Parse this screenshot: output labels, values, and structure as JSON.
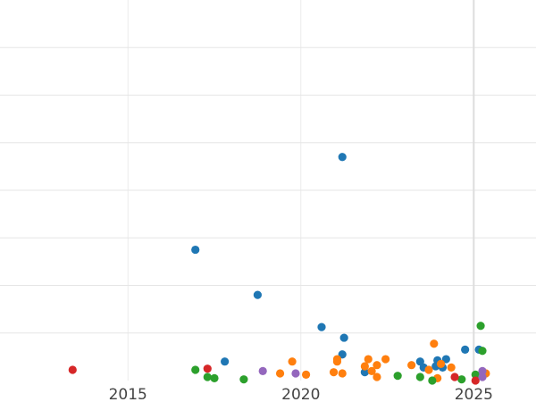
{
  "chart_data": {
    "type": "scatter",
    "title": "",
    "xlabel": "",
    "ylabel": "",
    "xlim": [
      2011.3,
      2026.8
    ],
    "ylim": [
      0,
      16
    ],
    "grid": true,
    "legend": "none",
    "x_ticks": [
      {
        "value": 2015,
        "label": "2015"
      },
      {
        "value": 2020,
        "label": "2020"
      },
      {
        "value": 2025,
        "label": "2025"
      }
    ],
    "y_gridlines": [
      2,
      4,
      6,
      8,
      10,
      12,
      14
    ],
    "highlight_x": 2025,
    "series": [
      {
        "color": "#1f77b4",
        "points": [
          {
            "x": 2021.2,
            "y": 9.4
          },
          {
            "x": 2016.95,
            "y": 5.5
          },
          {
            "x": 2018.75,
            "y": 3.6
          },
          {
            "x": 2020.6,
            "y": 2.25
          },
          {
            "x": 2021.25,
            "y": 1.8
          },
          {
            "x": 2021.2,
            "y": 1.1
          },
          {
            "x": 2017.8,
            "y": 0.8
          },
          {
            "x": 2021.85,
            "y": 0.35
          },
          {
            "x": 2023.45,
            "y": 0.8
          },
          {
            "x": 2023.55,
            "y": 0.55
          },
          {
            "x": 2023.95,
            "y": 0.85
          },
          {
            "x": 2023.9,
            "y": 0.6
          },
          {
            "x": 2024.1,
            "y": 0.55
          },
          {
            "x": 2024.2,
            "y": 0.9
          },
          {
            "x": 2024.75,
            "y": 1.3
          },
          {
            "x": 2025.15,
            "y": 1.3
          }
        ]
      },
      {
        "color": "#ff7f0e",
        "points": [
          {
            "x": 2019.75,
            "y": 0.8
          },
          {
            "x": 2019.4,
            "y": 0.3
          },
          {
            "x": 2020.15,
            "y": 0.25
          },
          {
            "x": 2021.05,
            "y": 0.9
          },
          {
            "x": 2021.05,
            "y": 0.8
          },
          {
            "x": 2020.95,
            "y": 0.35
          },
          {
            "x": 2021.2,
            "y": 0.3
          },
          {
            "x": 2021.85,
            "y": 0.6
          },
          {
            "x": 2021.95,
            "y": 0.9
          },
          {
            "x": 2022.05,
            "y": 0.4
          },
          {
            "x": 2022.2,
            "y": 0.65
          },
          {
            "x": 2022.2,
            "y": 0.15
          },
          {
            "x": 2022.45,
            "y": 0.9
          },
          {
            "x": 2023.2,
            "y": 0.65
          },
          {
            "x": 2023.7,
            "y": 0.45
          },
          {
            "x": 2023.85,
            "y": 1.55
          },
          {
            "x": 2023.95,
            "y": 0.1
          },
          {
            "x": 2024.05,
            "y": 0.7
          },
          {
            "x": 2024.35,
            "y": 0.55
          },
          {
            "x": 2025.35,
            "y": 0.3
          }
        ]
      },
      {
        "color": "#2ca02c",
        "points": [
          {
            "x": 2016.95,
            "y": 0.45
          },
          {
            "x": 2017.3,
            "y": 0.15
          },
          {
            "x": 2017.5,
            "y": 0.1
          },
          {
            "x": 2018.35,
            "y": 0.05
          },
          {
            "x": 2022.8,
            "y": 0.2
          },
          {
            "x": 2023.45,
            "y": 0.15
          },
          {
            "x": 2023.8,
            "y": 0.0
          },
          {
            "x": 2024.65,
            "y": 0.05
          },
          {
            "x": 2025.05,
            "y": 0.25
          },
          {
            "x": 2025.2,
            "y": 2.3
          },
          {
            "x": 2025.25,
            "y": 1.25
          }
        ]
      },
      {
        "color": "#d62728",
        "points": [
          {
            "x": 2013.4,
            "y": 0.45
          },
          {
            "x": 2017.3,
            "y": 0.5
          },
          {
            "x": 2024.45,
            "y": 0.15
          },
          {
            "x": 2025.05,
            "y": 0.0
          }
        ]
      },
      {
        "color": "#9467bd",
        "points": [
          {
            "x": 2018.9,
            "y": 0.4
          },
          {
            "x": 2019.85,
            "y": 0.3
          },
          {
            "x": 2025.25,
            "y": 0.4
          },
          {
            "x": 2025.25,
            "y": 0.15
          }
        ]
      }
    ]
  }
}
